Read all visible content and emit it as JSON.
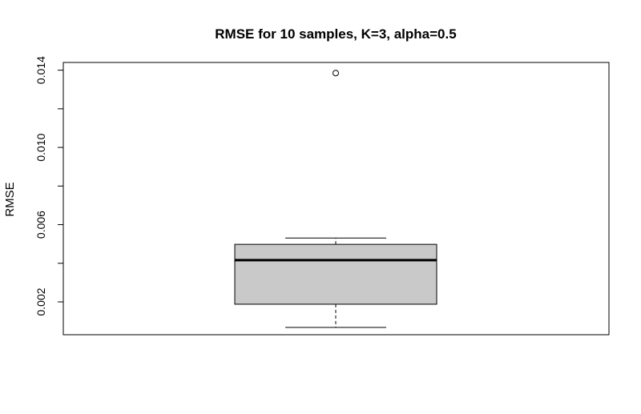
{
  "chart_data": {
    "type": "boxplot",
    "title": "RMSE for 10 samples, K=3, alpha=0.5",
    "xlabel": "",
    "ylabel": "RMSE",
    "ylim": [
      0.0003,
      0.0144
    ],
    "yticks": [
      0.002,
      0.006,
      0.01,
      0.014
    ],
    "ytick_labels": [
      "0.002",
      "0.006",
      "0.010",
      "0.014"
    ],
    "grid": false,
    "box": {
      "whisker_low": 0.00068,
      "q1": 0.00188,
      "median": 0.00416,
      "q3": 0.00498,
      "whisker_high": 0.00531,
      "outliers": [
        0.01385
      ]
    },
    "colors": {
      "box_fill": "#c9c9c9",
      "lines": "#000000"
    }
  }
}
